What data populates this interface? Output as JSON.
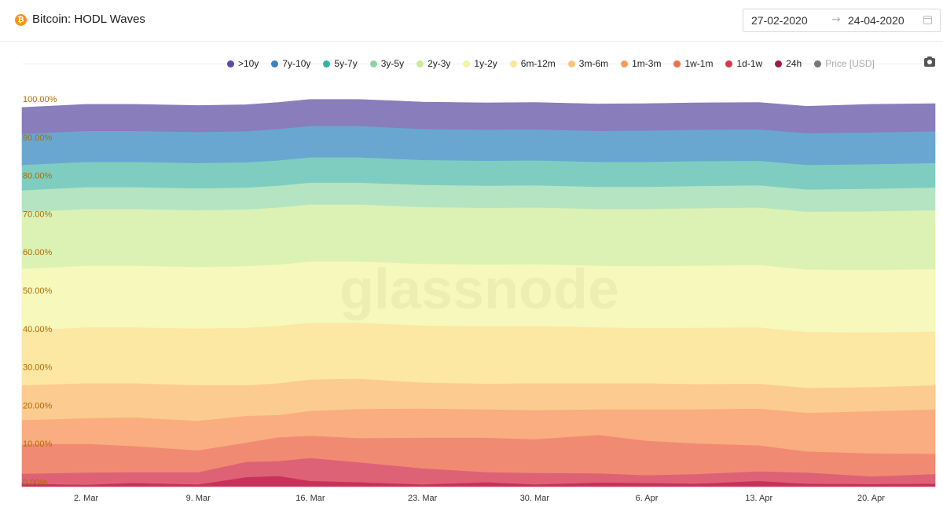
{
  "header": {
    "icon": "bitcoin-icon",
    "title": "Bitcoin: HODL Waves",
    "date_start": "27-02-2020",
    "date_end": "24-04-2020",
    "arrow": "→",
    "calendar_icon": "calendar-icon"
  },
  "toolbar": {
    "camera_icon": "camera-icon"
  },
  "watermark": "glassnode",
  "chart_data": {
    "type": "area",
    "stacked": true,
    "ylim": [
      0,
      100
    ],
    "y_ticks": [
      "0.00%",
      "10.00%",
      "20.00%",
      "30.00%",
      "40.00%",
      "50.00%",
      "60.00%",
      "70.00%",
      "80.00%",
      "90.00%",
      "100.00%"
    ],
    "x_ticks": [
      "2. Mar",
      "9. Mar",
      "16. Mar",
      "23. Mar",
      "30. Mar",
      "6. Apr",
      "13. Apr",
      "20. Apr"
    ],
    "x_tick_dates": [
      "2020-03-02",
      "2020-03-09",
      "2020-03-16",
      "2020-03-23",
      "2020-03-30",
      "2020-04-06",
      "2020-04-13",
      "2020-04-20"
    ],
    "x_start": "2020-02-27",
    "x_end": "2020-04-24",
    "legend_position": "top-right",
    "grid": false,
    "legend": [
      {
        "name": ">10y",
        "color": "#5a4aaa"
      },
      {
        "name": "7y-10y",
        "color": "#3a83bd"
      },
      {
        "name": "5y-7y",
        "color": "#2fb5a2"
      },
      {
        "name": "3y-5y",
        "color": "#8fd3a3"
      },
      {
        "name": "2y-3y",
        "color": "#c9ec9a"
      },
      {
        "name": "1y-2y",
        "color": "#f2f5a2"
      },
      {
        "name": "6m-12m",
        "color": "#fbe69a"
      },
      {
        "name": "3m-6m",
        "color": "#fbc27a"
      },
      {
        "name": "1m-3m",
        "color": "#f79a5a"
      },
      {
        "name": "1w-1m",
        "color": "#ee6f4e"
      },
      {
        "name": "1d-1w",
        "color": "#d23a4c"
      },
      {
        "name": "24h",
        "color": "#a11a4a"
      },
      {
        "name": "Price [USD]",
        "color": "#777777",
        "muted": true
      }
    ],
    "series": [
      {
        "name": "24h",
        "color": "#c7325a",
        "x": [
          "2020-02-27",
          "2020-03-02",
          "2020-03-05",
          "2020-03-09",
          "2020-03-12",
          "2020-03-14",
          "2020-03-16",
          "2020-03-19",
          "2020-03-23",
          "2020-03-27",
          "2020-03-30",
          "2020-04-03",
          "2020-04-06",
          "2020-04-09",
          "2020-04-13",
          "2020-04-16",
          "2020-04-20",
          "2020-04-24"
        ],
        "values": [
          0.8,
          0.5,
          1.0,
          0.6,
          2.5,
          2.8,
          1.5,
          1.2,
          0.6,
          1.2,
          0.6,
          1.1,
          1.0,
          0.8,
          1.5,
          0.8,
          0.7,
          0.8
        ]
      },
      {
        "name": "1d-1w",
        "color": "#de6276",
        "x": [
          "2020-02-27",
          "2020-03-02",
          "2020-03-05",
          "2020-03-09",
          "2020-03-12",
          "2020-03-14",
          "2020-03-16",
          "2020-03-19",
          "2020-03-23",
          "2020-03-27",
          "2020-03-30",
          "2020-04-03",
          "2020-04-06",
          "2020-04-09",
          "2020-04-13",
          "2020-04-16",
          "2020-04-20",
          "2020-04-24"
        ],
        "values": [
          2.6,
          3.2,
          2.8,
          3.2,
          4.0,
          3.9,
          6.0,
          5.2,
          4.2,
          2.6,
          3.0,
          2.4,
          2.0,
          2.5,
          2.5,
          2.9,
          2.0,
          2.5
        ]
      },
      {
        "name": "1w-1m",
        "color": "#f18a72",
        "x": [
          "2020-02-27",
          "2020-03-02",
          "2020-03-05",
          "2020-03-09",
          "2020-03-12",
          "2020-03-14",
          "2020-03-16",
          "2020-03-19",
          "2020-03-23",
          "2020-03-27",
          "2020-03-30",
          "2020-04-03",
          "2020-04-06",
          "2020-04-09",
          "2020-04-13",
          "2020-04-16",
          "2020-04-20",
          "2020-04-24"
        ],
        "values": [
          7.7,
          7.5,
          6.8,
          5.7,
          5.0,
          6.2,
          5.8,
          6.3,
          8.0,
          9.0,
          8.8,
          10.0,
          9.0,
          8.0,
          6.8,
          5.5,
          6.0,
          5.3
        ]
      },
      {
        "name": "1m-3m",
        "color": "#f9ad80",
        "x": [
          "2020-02-27",
          "2020-03-02",
          "2020-03-05",
          "2020-03-09",
          "2020-03-12",
          "2020-03-14",
          "2020-03-16",
          "2020-03-19",
          "2020-03-23",
          "2020-03-27",
          "2020-03-30",
          "2020-04-03",
          "2020-04-06",
          "2020-04-09",
          "2020-04-13",
          "2020-04-16",
          "2020-04-20",
          "2020-04-24"
        ],
        "values": [
          6.3,
          6.7,
          7.5,
          7.7,
          7.0,
          5.8,
          6.5,
          7.6,
          7.6,
          7.4,
          7.6,
          6.7,
          8.2,
          8.9,
          9.6,
          10.1,
          11.0,
          11.6
        ]
      },
      {
        "name": "3m-6m",
        "color": "#fccb90",
        "x": [
          "2020-02-27",
          "2020-03-02",
          "2020-03-05",
          "2020-03-09",
          "2020-03-12",
          "2020-03-14",
          "2020-03-16",
          "2020-03-19",
          "2020-03-23",
          "2020-03-27",
          "2020-03-30",
          "2020-04-03",
          "2020-04-06",
          "2020-04-09",
          "2020-04-13",
          "2020-04-16",
          "2020-04-20",
          "2020-04-24"
        ],
        "values": [
          9.1,
          9.1,
          8.9,
          9.3,
          8.0,
          8.3,
          8.2,
          7.9,
          6.8,
          6.7,
          7.0,
          6.8,
          6.8,
          6.6,
          6.5,
          6.5,
          6.3,
          6.3
        ]
      },
      {
        "name": "6m-12m",
        "color": "#fce7a3",
        "x": [
          "2020-02-27",
          "2020-03-02",
          "2020-03-05",
          "2020-03-09",
          "2020-03-12",
          "2020-03-14",
          "2020-03-16",
          "2020-03-19",
          "2020-03-23",
          "2020-03-27",
          "2020-03-30",
          "2020-04-03",
          "2020-04-06",
          "2020-04-09",
          "2020-04-13",
          "2020-04-16",
          "2020-04-20",
          "2020-04-24"
        ],
        "values": [
          14.3,
          14.6,
          14.6,
          14.8,
          15.0,
          15.0,
          14.8,
          14.6,
          14.9,
          15.0,
          15.0,
          14.6,
          14.4,
          14.7,
          14.7,
          14.6,
          14.3,
          14.0
        ]
      },
      {
        "name": "1y-2y",
        "color": "#f6f8bc",
        "x": [
          "2020-02-27",
          "2020-03-02",
          "2020-03-05",
          "2020-03-09",
          "2020-03-12",
          "2020-03-14",
          "2020-03-16",
          "2020-03-19",
          "2020-03-23",
          "2020-03-27",
          "2020-03-30",
          "2020-04-03",
          "2020-04-06",
          "2020-04-09",
          "2020-04-13",
          "2020-04-16",
          "2020-04-20",
          "2020-04-24"
        ],
        "values": [
          16.1,
          16.1,
          16.1,
          16.1,
          16.1,
          16.0,
          16.0,
          16.0,
          16.1,
          16.1,
          16.1,
          16.1,
          16.2,
          16.2,
          16.3,
          16.3,
          16.3,
          16.3
        ]
      },
      {
        "name": "2y-3y",
        "color": "#dcf2b4",
        "x": [
          "2020-02-27",
          "2020-03-02",
          "2020-03-05",
          "2020-03-09",
          "2020-03-12",
          "2020-03-14",
          "2020-03-16",
          "2020-03-19",
          "2020-03-23",
          "2020-03-27",
          "2020-03-30",
          "2020-04-03",
          "2020-04-06",
          "2020-04-09",
          "2020-04-13",
          "2020-04-16",
          "2020-04-20",
          "2020-04-24"
        ],
        "values": [
          14.8,
          14.8,
          14.8,
          14.8,
          14.8,
          14.9,
          14.9,
          14.9,
          14.8,
          14.8,
          14.8,
          14.8,
          14.9,
          15.0,
          15.0,
          15.1,
          15.3,
          15.4
        ]
      },
      {
        "name": "3y-5y",
        "color": "#b4e4c2",
        "x": [
          "2020-02-27",
          "2020-03-02",
          "2020-03-05",
          "2020-03-09",
          "2020-03-12",
          "2020-03-14",
          "2020-03-16",
          "2020-03-19",
          "2020-03-23",
          "2020-03-27",
          "2020-03-30",
          "2020-04-03",
          "2020-04-06",
          "2020-04-09",
          "2020-04-13",
          "2020-04-16",
          "2020-04-20",
          "2020-04-24"
        ],
        "values": [
          5.7,
          5.7,
          5.7,
          5.7,
          5.7,
          5.7,
          5.7,
          5.7,
          5.8,
          5.8,
          5.8,
          5.8,
          5.8,
          5.8,
          5.8,
          5.8,
          5.9,
          5.9
        ]
      },
      {
        "name": "5y-7y",
        "color": "#7fcdc1",
        "x": [
          "2020-02-27",
          "2020-03-02",
          "2020-03-05",
          "2020-03-09",
          "2020-03-12",
          "2020-03-14",
          "2020-03-16",
          "2020-03-19",
          "2020-03-23",
          "2020-03-27",
          "2020-03-30",
          "2020-04-03",
          "2020-04-06",
          "2020-04-09",
          "2020-04-13",
          "2020-04-16",
          "2020-04-20",
          "2020-04-24"
        ],
        "values": [
          6.6,
          6.6,
          6.6,
          6.6,
          6.6,
          6.6,
          6.6,
          6.6,
          6.5,
          6.5,
          6.5,
          6.5,
          6.5,
          6.5,
          6.4,
          6.4,
          6.4,
          6.4
        ]
      },
      {
        "name": "7y-10y",
        "color": "#6aa7d0",
        "x": [
          "2020-02-27",
          "2020-03-02",
          "2020-03-05",
          "2020-03-09",
          "2020-03-12",
          "2020-03-14",
          "2020-03-16",
          "2020-03-19",
          "2020-03-23",
          "2020-03-27",
          "2020-03-30",
          "2020-04-03",
          "2020-04-06",
          "2020-04-09",
          "2020-04-13",
          "2020-04-16",
          "2020-04-20",
          "2020-04-24"
        ],
        "values": [
          8.1,
          8.1,
          8.1,
          8.1,
          8.1,
          8.2,
          8.2,
          8.2,
          8.1,
          8.1,
          8.1,
          8.1,
          8.2,
          8.2,
          8.2,
          8.3,
          8.3,
          8.3
        ]
      },
      {
        "name": ">10y",
        "color": "#897dbb",
        "x": [
          "2020-02-27",
          "2020-03-02",
          "2020-03-05",
          "2020-03-09",
          "2020-03-12",
          "2020-03-14",
          "2020-03-16",
          "2020-03-19",
          "2020-03-23",
          "2020-03-27",
          "2020-03-30",
          "2020-04-03",
          "2020-04-06",
          "2020-04-09",
          "2020-04-13",
          "2020-04-16",
          "2020-04-20",
          "2020-04-24"
        ],
        "values": [
          6.9,
          6.9,
          6.9,
          6.9,
          6.9,
          6.9,
          6.9,
          6.9,
          7.0,
          7.0,
          7.0,
          7.0,
          7.0,
          7.0,
          7.0,
          7.0,
          7.3,
          7.2
        ]
      }
    ]
  }
}
